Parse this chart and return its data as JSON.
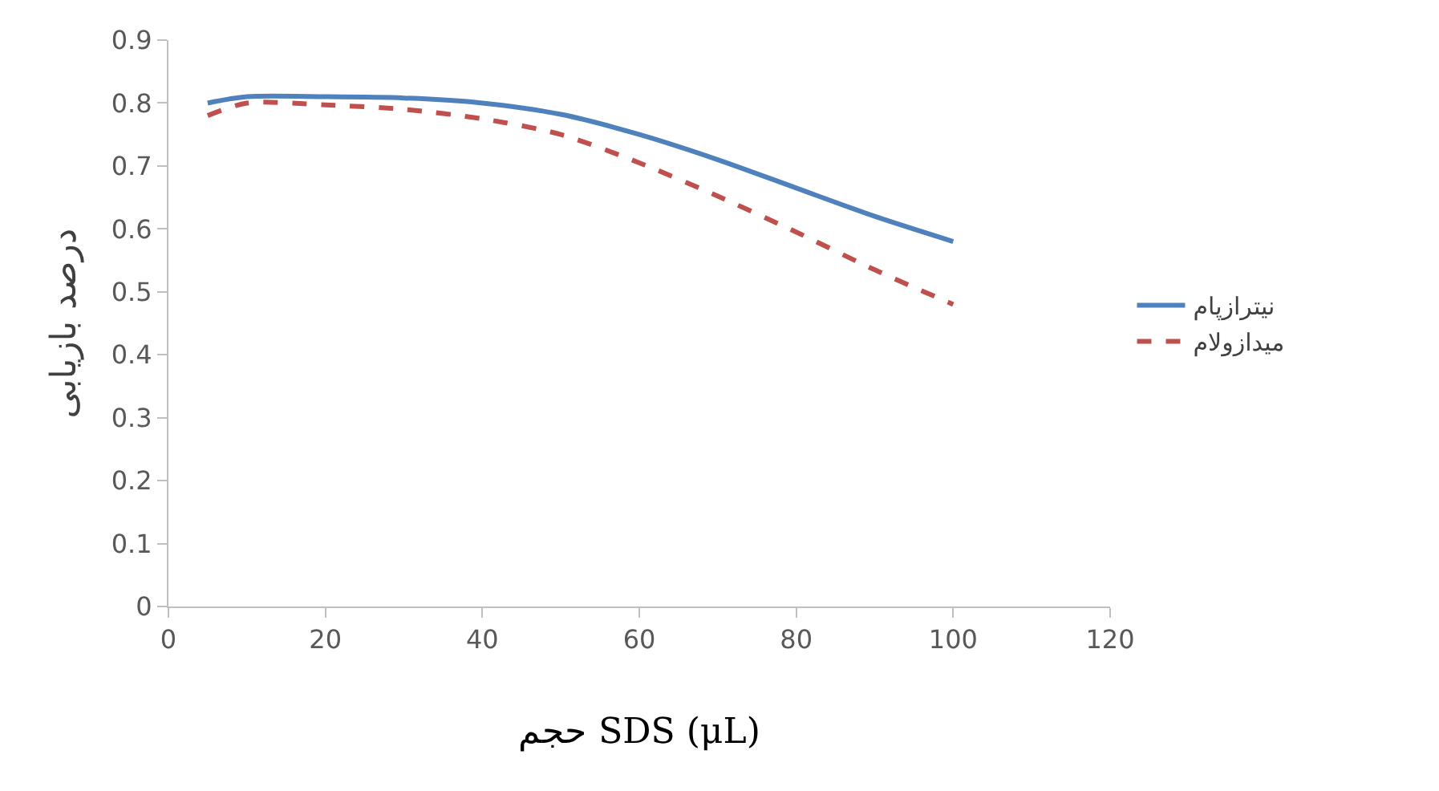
{
  "chart_data": {
    "type": "line",
    "xlabel": "حجم SDS (μL)",
    "ylabel": "درصد بازیابی",
    "x": [
      5,
      10,
      20,
      30,
      40,
      50,
      60,
      70,
      80,
      90,
      100
    ],
    "series": [
      {
        "name": "نیترازپام",
        "color": "#4f81bd",
        "line_style": "solid",
        "values": [
          0.8,
          0.81,
          0.81,
          0.808,
          0.8,
          0.782,
          0.75,
          0.71,
          0.665,
          0.62,
          0.58
        ]
      },
      {
        "name": "میدازولام",
        "color": "#c0504d",
        "line_style": "dashed",
        "values": [
          0.78,
          0.8,
          0.797,
          0.79,
          0.775,
          0.75,
          0.705,
          0.652,
          0.595,
          0.535,
          0.48
        ]
      }
    ],
    "xlim": [
      0,
      120
    ],
    "xticks": [
      0,
      20,
      40,
      60,
      80,
      100,
      120
    ],
    "ylim": [
      0,
      0.9
    ],
    "yticks": [
      0,
      0.1,
      0.2,
      0.3,
      0.4,
      0.5,
      0.6,
      0.7,
      0.8,
      0.9
    ],
    "legend": "right",
    "marker": "none"
  }
}
